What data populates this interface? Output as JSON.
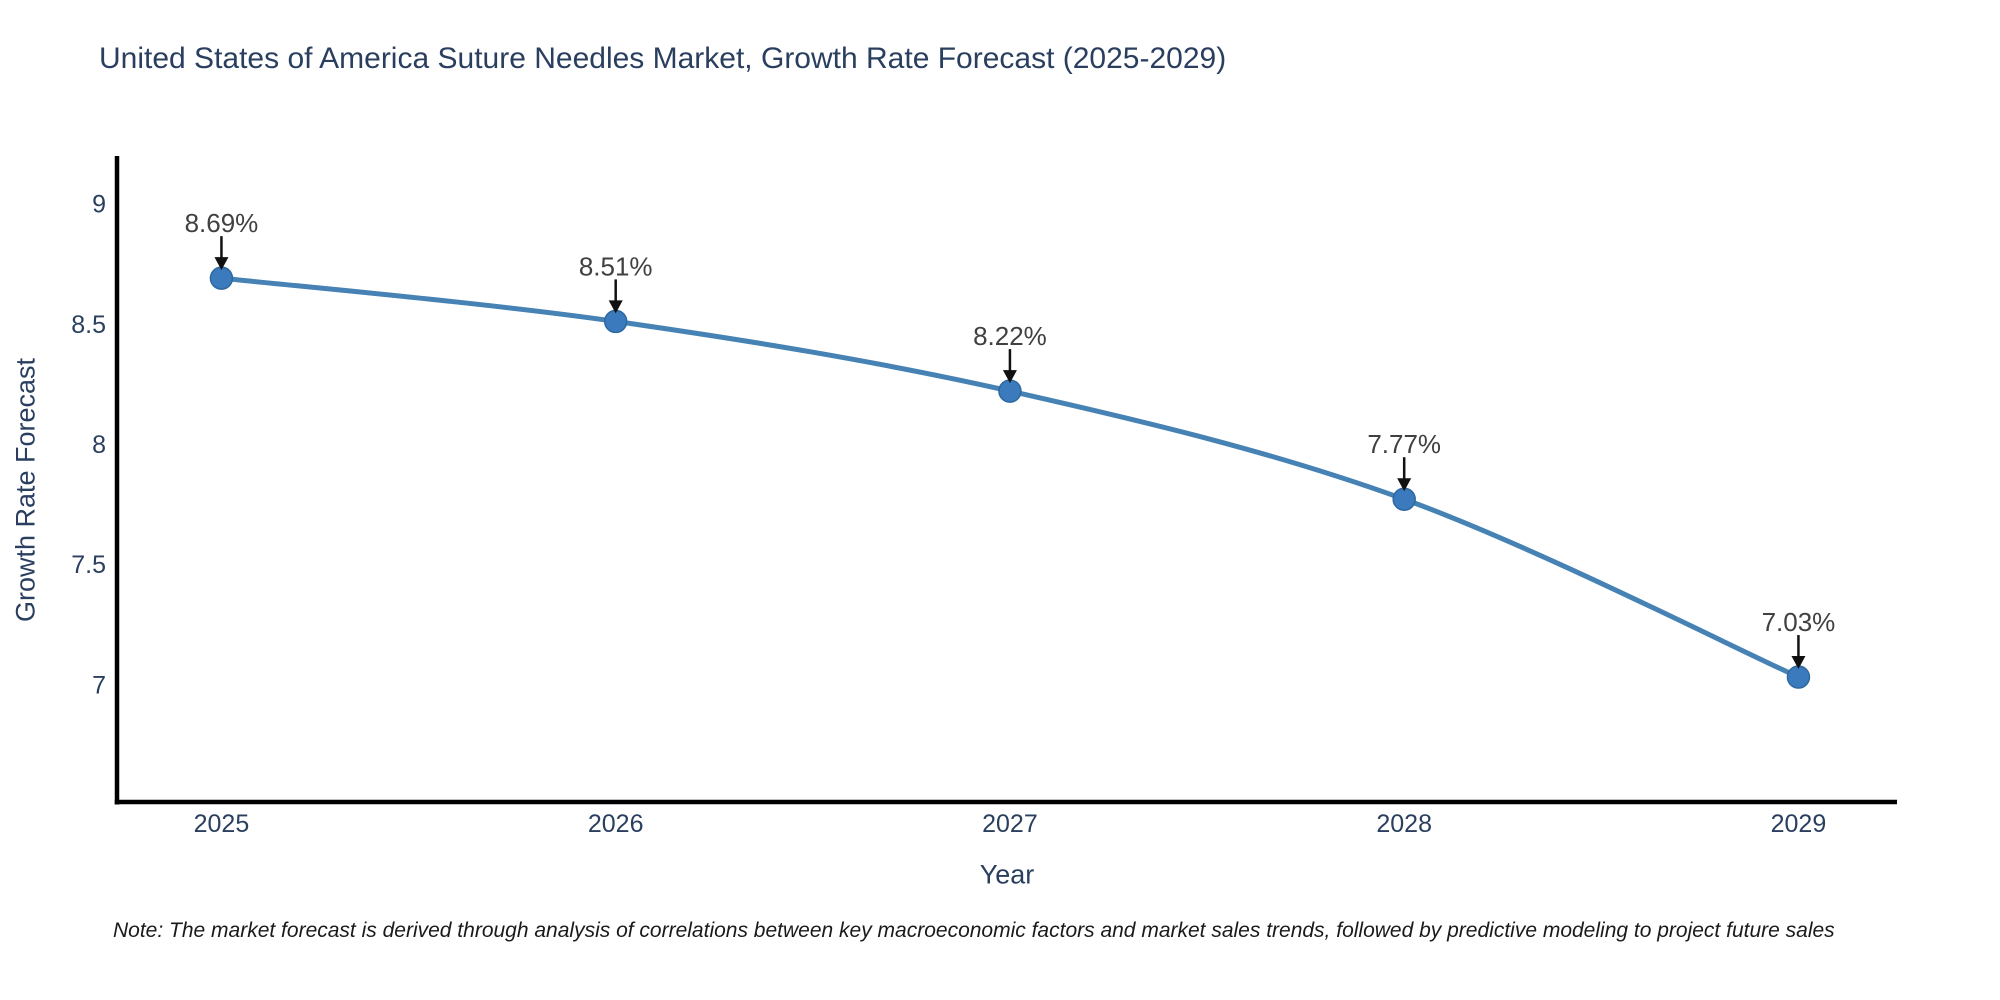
{
  "page": {
    "background": "#ffffff"
  },
  "header": {
    "title": "United States of America Suture Needles Market, Growth Rate Forecast (2025-2029)"
  },
  "footnote": {
    "text": "Note: The market forecast is derived through analysis of correlations between key macroeconomic factors and market sales trends, followed by predictive modeling to project future sales"
  },
  "chart_data": {
    "type": "line",
    "title": "United States of America Suture Needles Market, Growth Rate Forecast (2025-2029)",
    "x": [
      2025,
      2026,
      2027,
      2028,
      2029
    ],
    "series": [
      {
        "name": "Growth Rate Forecast",
        "values": [
          8.69,
          8.51,
          8.22,
          7.77,
          7.03
        ]
      }
    ],
    "point_labels": [
      "8.69%",
      "8.51%",
      "8.22%",
      "7.77%",
      "7.03%"
    ],
    "xlabel": "Year",
    "ylabel": "Growth Rate Forecast",
    "xticks": [
      "2025",
      "2026",
      "2027",
      "2028",
      "2029"
    ],
    "yticks": [
      9,
      8.5,
      8,
      7.5,
      7
    ],
    "ytick_labels": [
      "9",
      "8.5",
      "8",
      "7.5",
      "7"
    ],
    "xlim": [
      2024.73,
      2029.25
    ],
    "ylim": [
      6.51,
      9.19
    ],
    "grid": false,
    "legend": "none",
    "colors": {
      "line": "#4682b4",
      "marker": "#3a7abd",
      "marker_edge": "#2d689f",
      "axis": "#000000",
      "tick_label": "#2a3f5f",
      "annotation": "#404040",
      "arrow": "#111111",
      "title": "#2a3f5f"
    }
  }
}
